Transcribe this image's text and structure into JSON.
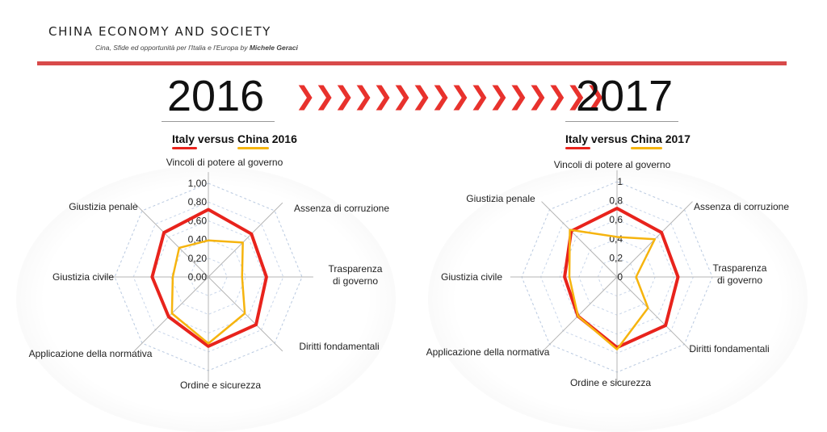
{
  "header": {
    "brand": "CHINA ECONOMY AND SOCIETY",
    "tagline_prefix": "Cina, Sfide ed opportunità per l'Italia e l'Europa by ",
    "tagline_author": "Michele Geraci"
  },
  "banner": {
    "year_left": "2016",
    "arrows": "❯❯❯❯❯❯❯❯❯❯❯❯❯❯❯❯",
    "year_right": "2017"
  },
  "colors": {
    "italy": "#e8231c",
    "china": "#f6b40e",
    "rule": "#d84a4a",
    "arrows": "#e8322d"
  },
  "chart_data": [
    {
      "type": "radar",
      "title_parts": [
        "Italy versus",
        "China",
        "2016"
      ],
      "categories": [
        "Vincoli di potere al governo",
        "Assenza di corruzione",
        "Trasparenza di governo",
        "Diritti fondamentali",
        "Ordine e sicurezza",
        "Applicazione della normativa",
        "Giustizia civile",
        "Giustizia penale"
      ],
      "tick_labels": [
        "0,00",
        "0,20",
        "0,40",
        "0,60",
        "0,80",
        "1,00"
      ],
      "rlim": [
        0,
        1
      ],
      "series": [
        {
          "name": "Italy",
          "values": [
            0.72,
            0.65,
            0.62,
            0.72,
            0.74,
            0.6,
            0.6,
            0.67
          ]
        },
        {
          "name": "China",
          "values": [
            0.39,
            0.52,
            0.36,
            0.55,
            0.71,
            0.55,
            0.38,
            0.44
          ]
        }
      ]
    },
    {
      "type": "radar",
      "title_parts": [
        "Italy versus",
        "China",
        "2017"
      ],
      "categories": [
        "Vincoli di potere al governo",
        "Assenza di corruzione",
        "Trasparenza di governo",
        "Diritti fondamentali",
        "Ordine e sicurezza",
        "Applicazione della normativa",
        "Giustizia civile",
        "Giustizia penale"
      ],
      "tick_labels": [
        "0",
        "0,2",
        "0,4",
        "0,6",
        "0,8",
        "1"
      ],
      "rlim": [
        0,
        1
      ],
      "series": [
        {
          "name": "Italy",
          "values": [
            0.72,
            0.66,
            0.64,
            0.72,
            0.74,
            0.58,
            0.55,
            0.68
          ]
        },
        {
          "name": "China",
          "values": [
            0.42,
            0.56,
            0.2,
            0.46,
            0.76,
            0.58,
            0.5,
            0.7
          ]
        }
      ]
    }
  ]
}
